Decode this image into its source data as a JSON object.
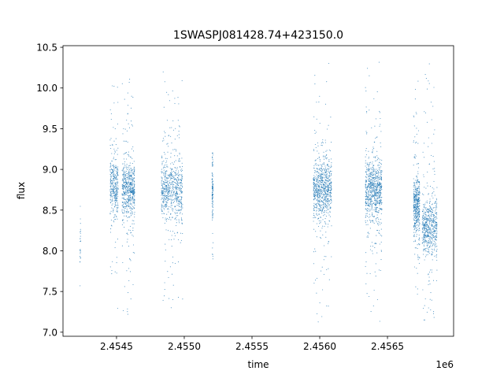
{
  "chart_data": {
    "type": "scatter",
    "title": "1SWASPJ081428.74+423150.0",
    "xlabel": "time",
    "ylabel": "flux",
    "x_offset_label": "1e6",
    "xlim": [
      2454105,
      2456988
    ],
    "ylim": [
      6.95,
      10.52
    ],
    "xticks": [
      2454500,
      2455000,
      2455500,
      2456000,
      2456500
    ],
    "xtick_labels": [
      "2.4545",
      "2.4550",
      "2.4555",
      "2.4560",
      "2.4565"
    ],
    "yticks": [
      7.0,
      7.5,
      8.0,
      8.5,
      9.0,
      9.5,
      10.0,
      10.5
    ],
    "ytick_labels": [
      "7.0",
      "7.5",
      "8.0",
      "8.5",
      "9.0",
      "9.5",
      "10.0",
      "10.5"
    ],
    "grid": false,
    "marker_color": "#1f77b4",
    "seasons": [
      {
        "t_start": 2454230,
        "t_end": 2454236,
        "median_flux": 8.1,
        "min_flux": 7.45,
        "max_flux": 8.65,
        "points": 25
      },
      {
        "t_start": 2454453,
        "t_end": 2454512,
        "median_flux": 8.8,
        "min_flux": 7.2,
        "max_flux": 10.12,
        "points": 350
      },
      {
        "t_start": 2454541,
        "t_end": 2454634,
        "median_flux": 8.75,
        "min_flux": 7.1,
        "max_flux": 10.35,
        "points": 600
      },
      {
        "t_start": 2454831,
        "t_end": 2454988,
        "median_flux": 8.75,
        "min_flux": 7.25,
        "max_flux": 10.33,
        "points": 700
      },
      {
        "t_start": 2455205,
        "t_end": 2455213,
        "median_flux": 8.75,
        "min_flux": 7.9,
        "max_flux": 9.2,
        "points": 120
      },
      {
        "t_start": 2455953,
        "t_end": 2456087,
        "median_flux": 8.75,
        "min_flux": 7.12,
        "max_flux": 10.35,
        "points": 800
      },
      {
        "t_start": 2456337,
        "t_end": 2456459,
        "median_flux": 8.75,
        "min_flux": 7.12,
        "max_flux": 10.35,
        "points": 800
      },
      {
        "t_start": 2456692,
        "t_end": 2456738,
        "median_flux": 8.55,
        "min_flux": 7.15,
        "max_flux": 10.3,
        "points": 450
      },
      {
        "t_start": 2456756,
        "t_end": 2456866,
        "median_flux": 8.3,
        "min_flux": 7.15,
        "max_flux": 10.3,
        "points": 600
      }
    ]
  }
}
